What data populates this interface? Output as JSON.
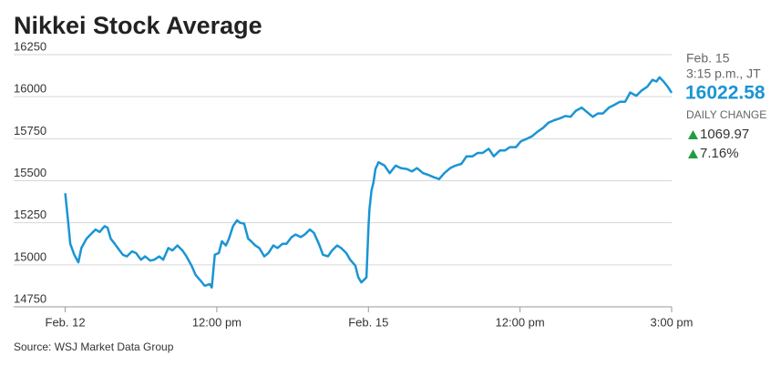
{
  "chart_data": {
    "type": "line",
    "title": "Nikkei Stock Average",
    "source": "Source: WSJ Market Data Group",
    "readout": {
      "date": "Feb. 15",
      "time": "3:15 p.m., JT",
      "last": "16022.58",
      "change_label": "DAILY CHANGE",
      "change": "1069.97",
      "change_pct": "7.16%"
    },
    "color": "#1a95d4",
    "grid": true,
    "xlim": [
      -51,
      600
    ],
    "xticks": [
      {
        "value": 0,
        "label": "Feb. 12"
      },
      {
        "value": 150,
        "label": "12:00 pm"
      },
      {
        "value": 300,
        "label": "Feb. 15"
      },
      {
        "value": 450,
        "label": "12:00 pm"
      },
      {
        "value": 600,
        "label": "3:00 pm"
      }
    ],
    "ylim": [
      14750,
      16250
    ],
    "yticks": [
      14750,
      15000,
      15250,
      15500,
      15750,
      16000,
      16250
    ],
    "x": [
      0,
      3,
      5,
      9,
      13,
      16,
      21,
      25,
      30,
      34,
      39,
      42,
      45,
      49,
      52,
      57,
      61,
      66,
      70,
      75,
      79,
      84,
      88,
      93,
      97,
      102,
      106,
      111,
      116,
      120,
      125,
      129,
      134,
      138,
      143,
      145,
      148,
      152,
      155,
      159,
      162,
      166,
      170,
      173,
      177,
      181,
      184,
      188,
      192,
      197,
      201,
      206,
      210,
      215,
      219,
      224,
      228,
      233,
      237,
      242,
      246,
      251,
      255,
      260,
      264,
      269,
      273,
      278,
      282,
      287,
      290,
      293,
      298,
      300,
      301,
      303,
      305,
      307,
      310,
      316,
      321,
      327,
      332,
      338,
      343,
      348,
      354,
      359,
      365,
      370,
      375,
      381,
      386,
      392,
      397,
      403,
      408,
      413,
      419,
      424,
      430,
      435,
      440,
      446,
      451,
      457,
      462,
      467,
      473,
      478,
      484,
      489,
      495,
      500,
      505,
      511,
      516,
      522,
      527,
      532,
      538,
      543,
      549,
      554,
      559,
      565,
      570,
      576,
      581,
      585,
      588,
      592,
      596,
      600
    ],
    "values": [
      15425,
      15250,
      15125,
      15060,
      15015,
      15100,
      15155,
      15180,
      15210,
      15195,
      15230,
      15220,
      15155,
      15125,
      15100,
      15060,
      15050,
      15080,
      15070,
      15030,
      15050,
      15025,
      15030,
      15050,
      15030,
      15100,
      15085,
      15115,
      15085,
      15050,
      14995,
      14940,
      14905,
      14875,
      14885,
      14865,
      15060,
      15070,
      15140,
      15115,
      15155,
      15230,
      15265,
      15250,
      15245,
      15155,
      15140,
      15115,
      15100,
      15050,
      15070,
      15115,
      15100,
      15125,
      15125,
      15165,
      15180,
      15165,
      15180,
      15210,
      15190,
      15125,
      15060,
      15050,
      15085,
      15115,
      15100,
      15070,
      15030,
      14995,
      14925,
      14895,
      14925,
      15220,
      15330,
      15440,
      15490,
      15570,
      15610,
      15590,
      15545,
      15590,
      15575,
      15570,
      15555,
      15575,
      15545,
      15535,
      15520,
      15510,
      15545,
      15575,
      15590,
      15600,
      15645,
      15645,
      15665,
      15665,
      15690,
      15645,
      15680,
      15680,
      15700,
      15700,
      15735,
      15750,
      15765,
      15790,
      15815,
      15845,
      15860,
      15870,
      15885,
      15880,
      15915,
      15935,
      15910,
      15880,
      15900,
      15900,
      15935,
      15950,
      15970,
      15970,
      16025,
      16005,
      16035,
      16060,
      16100,
      16090,
      16115,
      16090,
      16060,
      16022.58
    ]
  }
}
